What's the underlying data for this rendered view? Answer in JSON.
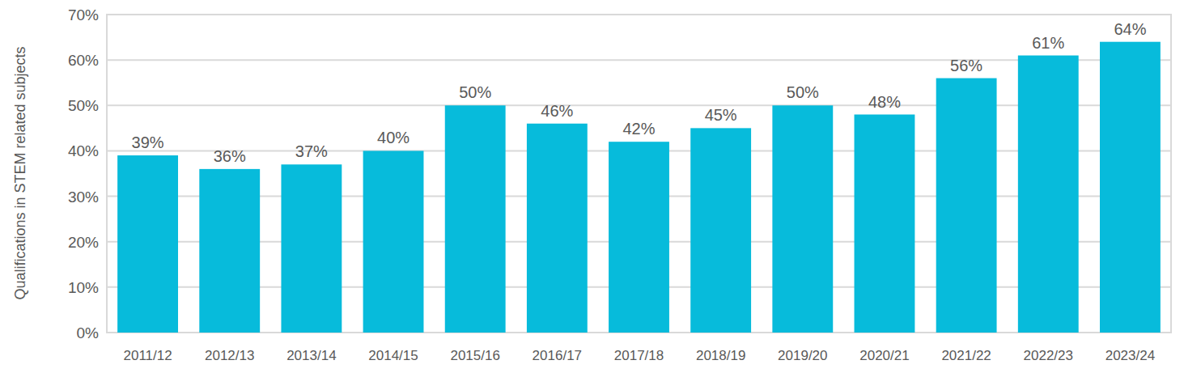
{
  "chart_data": {
    "type": "bar",
    "y_label": "Qualifications in STEM related subjects",
    "categories": [
      "2011/12",
      "2012/13",
      "2013/14",
      "2014/15",
      "2015/16",
      "2016/17",
      "2017/18",
      "2018/19",
      "2019/20",
      "2020/21",
      "2021/22",
      "2022/23",
      "2023/24"
    ],
    "values": [
      39,
      36,
      37,
      40,
      50,
      46,
      42,
      45,
      50,
      48,
      56,
      61,
      64
    ],
    "value_labels": [
      "39%",
      "36%",
      "37%",
      "40%",
      "50%",
      "46%",
      "42%",
      "45%",
      "50%",
      "48%",
      "56%",
      "61%",
      "64%"
    ],
    "color": "#07bbdb",
    "ylim": [
      0,
      70
    ],
    "yticks": [
      {
        "value": 0,
        "label": "0%"
      },
      {
        "value": 10,
        "label": "10%"
      },
      {
        "value": 20,
        "label": "20%"
      },
      {
        "value": 30,
        "label": "30%"
      },
      {
        "value": 40,
        "label": "40%"
      },
      {
        "value": 50,
        "label": "50%"
      },
      {
        "value": 60,
        "label": "60%"
      },
      {
        "value": 70,
        "label": "70%"
      }
    ],
    "grid": true,
    "data_labels": true
  }
}
